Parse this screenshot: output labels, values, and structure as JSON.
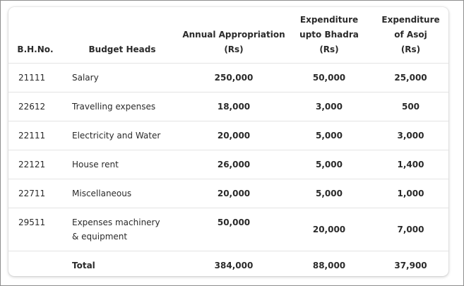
{
  "table": {
    "columns": {
      "bh_no": [
        "B.H.No."
      ],
      "budget_heads": [
        "Budget Heads"
      ],
      "annual": [
        "Annual Appropriation",
        "(Rs)"
      ],
      "exp_bhadra": [
        "Expenditure",
        "upto Bhadra",
        "(Rs)"
      ],
      "exp_asoj": [
        "Expenditure",
        "of Asoj",
        "(Rs)"
      ]
    },
    "rows": [
      {
        "bh_no": "21111",
        "head": [
          "Salary"
        ],
        "annual": "250,000",
        "bhadra": "50,000",
        "asoj": "25,000"
      },
      {
        "bh_no": "22612",
        "head": [
          "Travelling expenses"
        ],
        "annual": "18,000",
        "bhadra": "3,000",
        "asoj": "500"
      },
      {
        "bh_no": "22111",
        "head": [
          "Electricity and Water"
        ],
        "annual": "20,000",
        "bhadra": "5,000",
        "asoj": "3,000"
      },
      {
        "bh_no": "22121",
        "head": [
          "House rent"
        ],
        "annual": "26,000",
        "bhadra": "5,000",
        "asoj": "1,400"
      },
      {
        "bh_no": "22711",
        "head": [
          "Miscellaneous"
        ],
        "annual": "20,000",
        "bhadra": "5,000",
        "asoj": "1,000"
      },
      {
        "bh_no": "29511",
        "head": [
          "Expenses machinery",
          "& equipment"
        ],
        "annual": "50,000",
        "bhadra": "20,000",
        "asoj": "7,000"
      }
    ],
    "total": {
      "bh_no": "",
      "label": "Total",
      "annual": "384,000",
      "bhadra": "88,000",
      "asoj": "37,900"
    }
  }
}
